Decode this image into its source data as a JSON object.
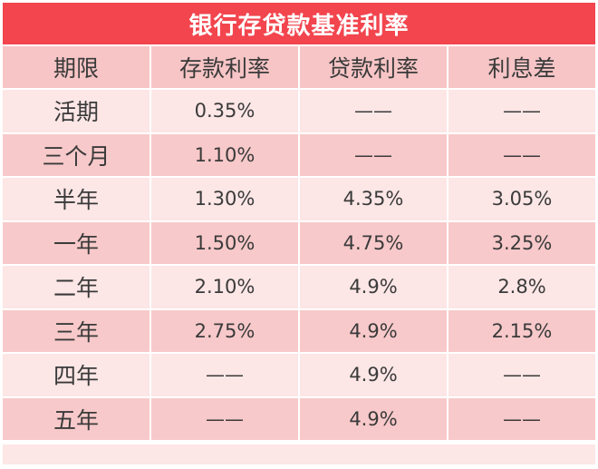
{
  "title": "银行存贷款基准利率",
  "headers": [
    "期限",
    "存款利率",
    "贷款利率",
    "利息差"
  ],
  "rows": [
    {
      "term": "活期",
      "deposit": "0.35%",
      "loan": "——",
      "spread": "——"
    },
    {
      "term": "三个月",
      "deposit": "1.10%",
      "loan": "——",
      "spread": "——"
    },
    {
      "term": "半年",
      "deposit": "1.30%",
      "loan": "4.35%",
      "spread": "3.05%"
    },
    {
      "term": "一年",
      "deposit": "1.50%",
      "loan": "4.75%",
      "spread": "3.25%"
    },
    {
      "term": "二年",
      "deposit": "2.10%",
      "loan": "4.9%",
      "spread": "2.8%"
    },
    {
      "term": "三年",
      "deposit": "2.75%",
      "loan": "4.9%",
      "spread": "2.15%"
    },
    {
      "term": "四年",
      "deposit": "——",
      "loan": "4.9%",
      "spread": "——"
    },
    {
      "term": "五年",
      "deposit": "——",
      "loan": "4.9%",
      "spread": "——"
    }
  ],
  "colors": {
    "title_bg": "#f2454e",
    "header_bg": "#f7c5c6",
    "row_light": "#fde6e6",
    "row_dark": "#f8c9ca"
  }
}
